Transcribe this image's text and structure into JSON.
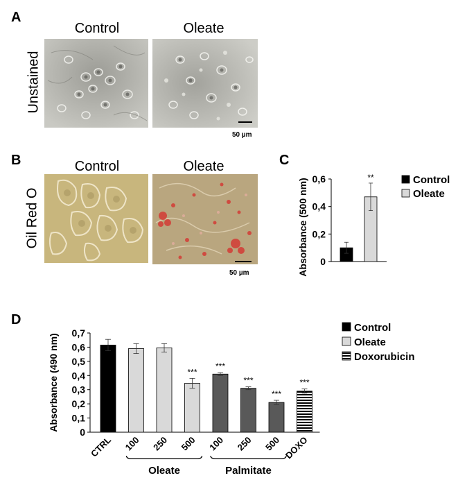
{
  "panels": {
    "A": {
      "letter": "A",
      "side_label": "Unstained",
      "captions": [
        "Control",
        "Oleate"
      ],
      "scale_bar": "50 µm"
    },
    "B": {
      "letter": "B",
      "side_label": "Oil Red O",
      "captions": [
        "Control",
        "Oleate"
      ],
      "scale_bar": "50 µm"
    },
    "C": {
      "letter": "C"
    },
    "D": {
      "letter": "D"
    }
  },
  "colors": {
    "control": "#000000",
    "oleate": "#d9d9d9",
    "palmitate": "#595959",
    "micro_gray": "#b9b9b3",
    "micro_orO_control": "#c9b57a",
    "micro_orO_oleate": "#b59f7a",
    "lipid_red": "#d2423a"
  },
  "chart_data": [
    {
      "id": "C",
      "type": "bar",
      "categories": [
        "Control",
        "Oleate"
      ],
      "values": [
        0.1,
        0.47
      ],
      "errors": [
        0.04,
        0.1
      ],
      "significance": [
        "",
        "**"
      ],
      "ylabel": "Absorbance (500 nm)",
      "ylim": [
        0,
        0.6
      ],
      "yticks": [
        "0",
        "0,2",
        "0,4",
        "0,6"
      ],
      "ytick_values": [
        0,
        0.2,
        0.4,
        0.6
      ],
      "legend": [
        {
          "name": "Control",
          "fill": "#000000"
        },
        {
          "name": "Oleate",
          "fill": "#d9d9d9"
        }
      ],
      "legend_position": "right",
      "grid": false
    },
    {
      "id": "D",
      "type": "bar",
      "categories": [
        "CTRL",
        "100",
        "250",
        "500",
        "100",
        "250",
        "500",
        "DOXO"
      ],
      "values": [
        0.615,
        0.59,
        0.595,
        0.345,
        0.41,
        0.31,
        0.21,
        0.29
      ],
      "errors": [
        0.04,
        0.035,
        0.03,
        0.035,
        0.01,
        0.01,
        0.015,
        0.015
      ],
      "significance": [
        "",
        "",
        "",
        "***",
        "***",
        "***",
        "***",
        "***"
      ],
      "fills": [
        "control",
        "oleate",
        "oleate",
        "oleate",
        "palmitate",
        "palmitate",
        "palmitate",
        "striped"
      ],
      "groups": [
        {
          "label": "Oleate",
          "from": 1,
          "to": 3
        },
        {
          "label": "Palmitate",
          "from": 4,
          "to": 6
        }
      ],
      "ylabel": "Absorbance (490 nm)",
      "ylim": [
        0,
        0.7
      ],
      "yticks": [
        "0",
        "0,1",
        "0,2",
        "0,3",
        "0,4",
        "0,5",
        "0,6",
        "0,7"
      ],
      "ytick_values": [
        0,
        0.1,
        0.2,
        0.3,
        0.4,
        0.5,
        0.6,
        0.7
      ],
      "legend": [
        {
          "name": "Control",
          "fill": "control"
        },
        {
          "name": "Oleate",
          "fill": "oleate"
        },
        {
          "name": "Doxorubicin",
          "fill": "striped"
        }
      ],
      "legend_position": "top-right",
      "grid": false
    }
  ]
}
